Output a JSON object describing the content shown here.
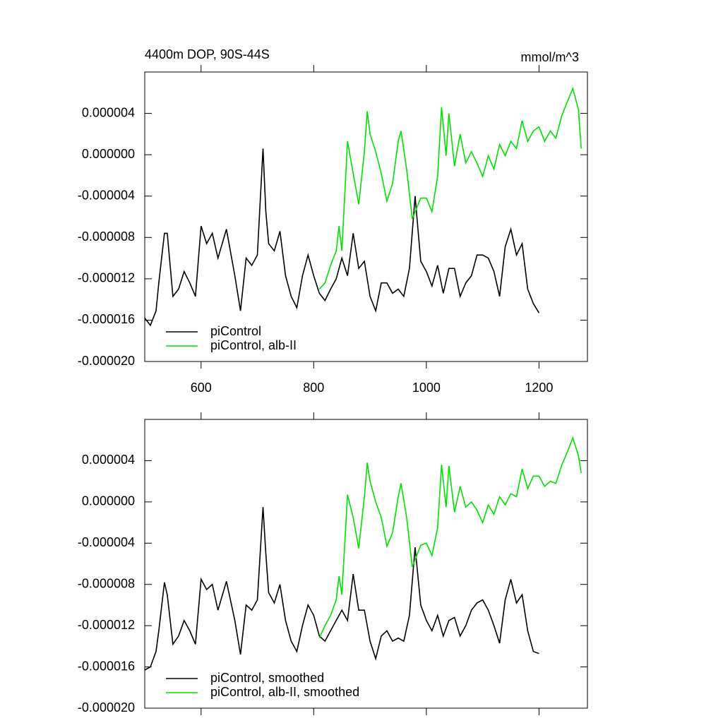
{
  "chart_data": [
    {
      "type": "line",
      "title": "4400m DOP, 90S-44S",
      "units": "mmol/m^3",
      "xlim": [
        500,
        1286
      ],
      "xticks": [
        600,
        800,
        1000,
        1200
      ],
      "show_xtick_labels": true,
      "ylim": [
        -2e-05,
        8e-06
      ],
      "yticks": [
        {
          "value": -2e-05,
          "label": "-0.000020"
        },
        {
          "value": -1.6e-05,
          "label": "-0.000016"
        },
        {
          "value": -1.2e-05,
          "label": "-0.000012"
        },
        {
          "value": -8e-06,
          "label": "-0.000008"
        },
        {
          "value": -4e-06,
          "label": "-0.000004"
        },
        {
          "value": 0,
          "label": "0.000000"
        },
        {
          "value": 4e-06,
          "label": "0.000004"
        }
      ],
      "legend": "lower left",
      "series": [
        {
          "name": "piControl",
          "color": "#000000",
          "x": [
            500,
            510,
            520,
            525,
            535,
            540,
            550,
            560,
            570,
            580,
            590,
            600,
            610,
            620,
            630,
            645,
            660,
            670,
            680,
            690,
            700,
            710,
            715,
            720,
            730,
            740,
            750,
            760,
            770,
            780,
            790,
            800,
            810,
            820,
            830,
            840,
            850,
            860,
            870,
            880,
            890,
            900,
            910,
            920,
            930,
            940,
            950,
            960,
            970,
            980,
            990,
            1000,
            1010,
            1020,
            1030,
            1040,
            1050,
            1060,
            1070,
            1080,
            1090,
            1100,
            1110,
            1120,
            1130,
            1140,
            1150,
            1160,
            1170,
            1180,
            1190,
            1200
          ],
          "values": [
            -1.58e-05,
            -1.65e-05,
            -1.51e-05,
            -1.24e-05,
            -7.6e-06,
            -7.6e-06,
            -1.37e-05,
            -1.3e-05,
            -1.13e-05,
            -1.24e-05,
            -1.37e-05,
            -6.9e-06,
            -8.6e-06,
            -7.6e-06,
            -1e-05,
            -7.2e-06,
            -1.17e-05,
            -1.51e-05,
            -1e-05,
            -1.07e-05,
            -9.7e-06,
            6e-07,
            -5.5e-06,
            -8.6e-06,
            -9.3e-06,
            -7.4e-06,
            -1.17e-05,
            -1.37e-05,
            -1.48e-05,
            -1.17e-05,
            -9.7e-06,
            -1.17e-05,
            -1.34e-05,
            -1.41e-05,
            -1.3e-05,
            -1.2e-05,
            -1e-05,
            -1.17e-05,
            -7.6e-06,
            -1.1e-05,
            -1.03e-05,
            -1.37e-05,
            -1.51e-05,
            -1.24e-05,
            -1.24e-05,
            -1.34e-05,
            -1.3e-05,
            -1.37e-05,
            -1.1e-05,
            -4e-06,
            -1.03e-05,
            -1.13e-05,
            -1.27e-05,
            -1.07e-05,
            -1.34e-05,
            -1.1e-05,
            -1.1e-05,
            -1.37e-05,
            -1.24e-05,
            -1.17e-05,
            -9.7e-06,
            -9.7e-06,
            -1e-05,
            -1.13e-05,
            -1.37e-05,
            -8.9e-06,
            -7.2e-06,
            -9.7e-06,
            -8.6e-06,
            -1.3e-05,
            -1.44e-05,
            -1.53e-05
          ]
        },
        {
          "name": "piControl, alb-II",
          "color": "#00e000",
          "x": [
            810,
            820,
            830,
            840,
            845,
            850,
            860,
            870,
            880,
            890,
            895,
            900,
            910,
            920,
            930,
            940,
            950,
            955,
            965,
            975,
            990,
            1000,
            1010,
            1020,
            1027,
            1035,
            1040,
            1050,
            1060,
            1070,
            1080,
            1090,
            1100,
            1110,
            1120,
            1130,
            1140,
            1150,
            1160,
            1170,
            1180,
            1190,
            1200,
            1210,
            1220,
            1230,
            1240,
            1250,
            1260,
            1270,
            1275
          ],
          "values": [
            -1.3e-05,
            -1.24e-05,
            -1.07e-05,
            -9.3e-06,
            -6.9e-06,
            -9.3e-06,
            1.3e-06,
            -1.8e-06,
            -4.8e-06,
            3e-07,
            4.2e-06,
            2e-06,
            3e-07,
            -1.8e-06,
            -4.5e-06,
            -2.8e-06,
            1.3e-06,
            2.3e-06,
            -1.4e-06,
            -6.2e-06,
            -4.2e-06,
            -4.2e-06,
            -5.5e-06,
            -2.1e-06,
            4.6e-06,
            -1e-07,
            4e-06,
            -1.1e-06,
            2e-06,
            -8e-07,
            3e-07,
            -8e-07,
            -2.1e-06,
            -1e-07,
            -1.4e-06,
            1e-06,
            -1e-07,
            1.3e-06,
            6e-07,
            3.3e-06,
            1.3e-06,
            2.3e-06,
            2.7e-06,
            1.3e-06,
            2.3e-06,
            1.6e-06,
            3.7e-06,
            5.1e-06,
            6.4e-06,
            4.4e-06,
            6e-07
          ]
        }
      ]
    },
    {
      "type": "line",
      "xlim": [
        500,
        1286
      ],
      "xticks": [
        600,
        800,
        1000,
        1200
      ],
      "show_xtick_labels": false,
      "ylim": [
        -2e-05,
        8e-06
      ],
      "yticks": [
        {
          "value": -2e-05,
          "label": "-0.000020"
        },
        {
          "value": -1.6e-05,
          "label": "-0.000016"
        },
        {
          "value": -1.2e-05,
          "label": "-0.000012"
        },
        {
          "value": -8e-06,
          "label": "-0.000008"
        },
        {
          "value": -4e-06,
          "label": "-0.000004"
        },
        {
          "value": 0,
          "label": "0.000000"
        },
        {
          "value": 4e-06,
          "label": "0.000004"
        }
      ],
      "legend": "lower left",
      "series": [
        {
          "name": "piControl, smoothed",
          "color": "#000000",
          "x": [
            500,
            510,
            520,
            525,
            535,
            540,
            550,
            560,
            570,
            580,
            590,
            600,
            610,
            620,
            630,
            645,
            660,
            670,
            680,
            690,
            700,
            710,
            715,
            720,
            730,
            740,
            750,
            760,
            770,
            780,
            790,
            800,
            810,
            820,
            830,
            840,
            850,
            860,
            870,
            880,
            890,
            900,
            910,
            920,
            930,
            940,
            950,
            960,
            970,
            980,
            990,
            1000,
            1010,
            1020,
            1030,
            1040,
            1050,
            1060,
            1070,
            1080,
            1090,
            1100,
            1110,
            1120,
            1130,
            1140,
            1150,
            1160,
            1170,
            1180,
            1190,
            1200
          ],
          "values": [
            -1.63e-05,
            -1.6e-05,
            -1.45e-05,
            -1.25e-05,
            -7.8e-06,
            -9e-06,
            -1.38e-05,
            -1.3e-05,
            -1.15e-05,
            -1.25e-05,
            -1.38e-05,
            -7.5e-06,
            -8.5e-06,
            -8e-06,
            -1.05e-05,
            -7.7e-06,
            -1.15e-05,
            -1.48e-05,
            -1e-05,
            -1.05e-05,
            -9.5e-06,
            -5e-07,
            -5e-06,
            -8.8e-06,
            -9.8e-06,
            -8e-06,
            -1.15e-05,
            -1.35e-05,
            -1.45e-05,
            -1.2e-05,
            -1e-05,
            -1.1e-05,
            -1.3e-05,
            -1.35e-05,
            -1.25e-05,
            -1.15e-05,
            -1.05e-05,
            -1.15e-05,
            -7e-06,
            -1.05e-05,
            -1.05e-05,
            -1.35e-05,
            -1.52e-05,
            -1.3e-05,
            -1.25e-05,
            -1.35e-05,
            -1.32e-05,
            -1.35e-05,
            -1.1e-05,
            -4.4e-06,
            -1e-05,
            -1.15e-05,
            -1.25e-05,
            -1.1e-05,
            -1.3e-05,
            -1.15e-05,
            -1.12e-05,
            -1.3e-05,
            -1.2e-05,
            -1.05e-05,
            -9.8e-06,
            -9.5e-06,
            -1.05e-05,
            -1.2e-05,
            -1.37e-05,
            -9.5e-06,
            -7.5e-06,
            -9.8e-06,
            -9e-06,
            -1.25e-05,
            -1.45e-05,
            -1.47e-05
          ]
        },
        {
          "name": "piControl, alb-II, smoothed",
          "color": "#00e000",
          "x": [
            810,
            820,
            830,
            840,
            845,
            850,
            860,
            870,
            880,
            890,
            895,
            900,
            910,
            920,
            930,
            940,
            950,
            955,
            965,
            975,
            990,
            1000,
            1010,
            1020,
            1027,
            1035,
            1040,
            1050,
            1060,
            1070,
            1080,
            1090,
            1100,
            1110,
            1120,
            1130,
            1140,
            1150,
            1160,
            1170,
            1180,
            1190,
            1200,
            1210,
            1220,
            1230,
            1240,
            1250,
            1260,
            1270,
            1275
          ],
          "values": [
            -1.32e-05,
            -1.2e-05,
            -1.1e-05,
            -9.5e-06,
            -7.2e-06,
            -9e-06,
            7e-07,
            -1.5e-06,
            -4.5e-06,
            5e-07,
            3.8e-06,
            2e-06,
            0.0,
            -1.5e-06,
            -4.3e-06,
            -3e-06,
            5e-07,
            1.8e-06,
            -1.5e-06,
            -6.3e-06,
            -4.2e-06,
            -4e-06,
            -5.2e-06,
            -2.5e-06,
            3.6e-06,
            -5e-07,
            3.5e-06,
            -1e-06,
            1.5e-06,
            -5e-07,
            0.0,
            -8e-07,
            -2e-06,
            -3e-07,
            -1.2e-06,
            5e-07,
            -3e-07,
            8e-07,
            5e-07,
            3.2e-06,
            1.3e-06,
            2.5e-06,
            2.5e-06,
            1.5e-06,
            2e-06,
            1.8e-06,
            3.5e-06,
            4.8e-06,
            6.2e-06,
            4.5e-06,
            2.8e-06
          ]
        }
      ]
    }
  ]
}
